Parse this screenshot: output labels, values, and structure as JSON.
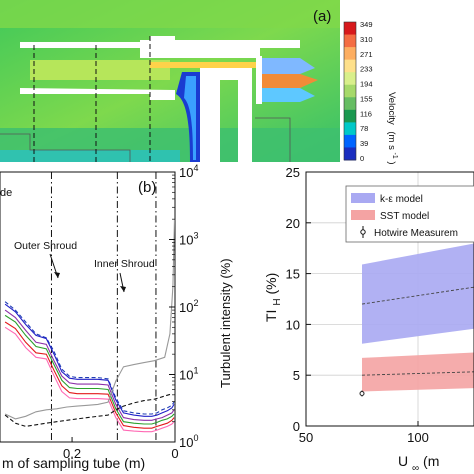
{
  "panel_a": {
    "label": "(a)",
    "colorbar": {
      "ticks": [
        "349",
        "310",
        "271",
        "233",
        "194",
        "155",
        "116",
        "78",
        "39",
        "0"
      ],
      "label_text": "Velocity",
      "label_unit": "(m s",
      "label_exp": "-1",
      "label_close": ")",
      "colors": [
        "#d7191c",
        "#f46d43",
        "#fdae61",
        "#fee08b",
        "#d9ef8b",
        "#a6d96a",
        "#66bd63",
        "#1a9850",
        "#00c8c8",
        "#0064ff",
        "#1a2dbf"
      ]
    }
  },
  "panel_b": {
    "label": "(b)",
    "partial_legend": "de",
    "annotations": [
      "Outer Shroud",
      "Inner Shroud"
    ],
    "xlabel": "m of sampling tube (m)",
    "xticks": [
      "0.2",
      "0"
    ],
    "right_ylabel": "Turbulent intensity (%)",
    "right_yticks": [
      {
        "base": "10",
        "exp": "4"
      },
      {
        "base": "10",
        "exp": "3"
      },
      {
        "base": "10",
        "exp": "2"
      },
      {
        "base": "10",
        "exp": "1"
      },
      {
        "base": "10",
        "exp": "0"
      }
    ]
  },
  "chart_data": [
    {
      "type": "line",
      "panel": "b",
      "xlabel": "m of sampling tube (m)",
      "ylabel": "Turbulent intensity (%)",
      "yscale": "log",
      "ylim": [
        1,
        10000
      ],
      "xlim": [
        0.34,
        0.0
      ],
      "xreverse": true,
      "vlines": [
        0.24,
        0.112,
        0.037
      ],
      "series": [
        {
          "color": "#1f3cb4",
          "dash": "dash",
          "x": [
            0.33,
            0.31,
            0.29,
            0.27,
            0.25,
            0.235,
            0.22,
            0.205,
            0.19,
            0.17,
            0.15,
            0.13,
            0.115,
            0.1,
            0.08,
            0.06,
            0.045,
            0.035,
            0.025,
            0.015,
            0.006,
            0.002
          ],
          "y": [
            120,
            90,
            60,
            40,
            35,
            22,
            12,
            9.4,
            9.0,
            9.0,
            9.0,
            8.6,
            4.5,
            2.9,
            2.7,
            2.6,
            2.6,
            2.7,
            3.0,
            3.2,
            3.5,
            3.9
          ]
        },
        {
          "color": "#2020c8",
          "dash": "solid",
          "x": [
            0.33,
            0.31,
            0.29,
            0.27,
            0.25,
            0.235,
            0.22,
            0.205,
            0.19,
            0.17,
            0.15,
            0.13,
            0.115,
            0.1,
            0.08,
            0.06,
            0.045,
            0.035,
            0.025,
            0.015,
            0.006,
            0.002
          ],
          "y": [
            110,
            85,
            55,
            38,
            34,
            20,
            11,
            8.8,
            8.5,
            8.5,
            8.5,
            8.2,
            4.2,
            2.7,
            2.5,
            2.4,
            2.4,
            2.5,
            2.7,
            2.9,
            3.2,
            3.6
          ]
        },
        {
          "color": "#8c2fa8",
          "dash": "solid",
          "x": [
            0.33,
            0.31,
            0.29,
            0.27,
            0.25,
            0.235,
            0.22,
            0.205,
            0.19,
            0.17,
            0.15,
            0.13,
            0.115,
            0.1,
            0.08,
            0.06,
            0.045,
            0.035,
            0.025,
            0.015,
            0.006,
            0.002
          ],
          "y": [
            90,
            70,
            45,
            30,
            28,
            16,
            9.5,
            7.5,
            7.2,
            7.2,
            7.2,
            7.0,
            3.6,
            2.3,
            2.15,
            2.1,
            2.1,
            2.2,
            2.3,
            2.5,
            2.7,
            3.0
          ]
        },
        {
          "color": "#2ca02c",
          "dash": "solid",
          "x": [
            0.33,
            0.31,
            0.29,
            0.27,
            0.25,
            0.235,
            0.22,
            0.205,
            0.19,
            0.17,
            0.15,
            0.13,
            0.115,
            0.1,
            0.08,
            0.06,
            0.045,
            0.035,
            0.025,
            0.015,
            0.006,
            0.002
          ],
          "y": [
            75,
            60,
            38,
            26,
            24,
            14,
            8.2,
            6.4,
            6.2,
            6.2,
            6.2,
            6.0,
            3.1,
            2.0,
            1.9,
            1.85,
            1.85,
            1.95,
            2.1,
            2.2,
            2.4,
            2.6
          ]
        },
        {
          "color": "#e31a1c",
          "dash": "solid",
          "x": [
            0.33,
            0.31,
            0.29,
            0.27,
            0.25,
            0.235,
            0.22,
            0.205,
            0.19,
            0.17,
            0.15,
            0.13,
            0.115,
            0.1,
            0.08,
            0.06,
            0.045,
            0.035,
            0.025,
            0.015,
            0.006,
            0.002
          ],
          "y": [
            60,
            48,
            30,
            21,
            20,
            11.5,
            6.8,
            5.4,
            5.2,
            5.2,
            5.2,
            5.1,
            2.7,
            1.75,
            1.65,
            1.6,
            1.6,
            1.7,
            1.8,
            1.9,
            2.1,
            2.3
          ]
        },
        {
          "color": "#ff69b4",
          "dash": "solid",
          "x": [
            0.33,
            0.31,
            0.29,
            0.27,
            0.25,
            0.235,
            0.22,
            0.205,
            0.19,
            0.17,
            0.15,
            0.13,
            0.115,
            0.1,
            0.08,
            0.06,
            0.045,
            0.035,
            0.025,
            0.015,
            0.006,
            0.002
          ],
          "y": [
            50,
            40,
            25,
            18,
            17,
            9.6,
            5.6,
            4.5,
            4.4,
            4.4,
            4.4,
            4.3,
            2.3,
            1.5,
            1.45,
            1.42,
            1.42,
            1.5,
            1.6,
            1.7,
            1.85,
            2.0
          ]
        },
        {
          "color": "#111111",
          "dash": "dash",
          "x": [
            0.33,
            0.31,
            0.29,
            0.27,
            0.25,
            0.23,
            0.21,
            0.19,
            0.17,
            0.15,
            0.13,
            0.115,
            0.1,
            0.08,
            0.06,
            0.04,
            0.02,
            0.005
          ],
          "y": [
            2.5,
            1.9,
            1.7,
            1.8,
            1.9,
            2.0,
            2.1,
            2.2,
            2.3,
            2.4,
            2.5,
            3.0,
            3.4,
            3.8,
            4.1,
            4.3,
            4.8,
            5.2
          ]
        },
        {
          "color": "#999999",
          "dash": "solid",
          "x": [
            0.33,
            0.31,
            0.29,
            0.27,
            0.25,
            0.23,
            0.21,
            0.19,
            0.17,
            0.15,
            0.13,
            0.115,
            0.1,
            0.08,
            0.06,
            0.04,
            0.02,
            0.01,
            0.004,
            0.001
          ],
          "y": [
            2.6,
            2.2,
            2.4,
            2.8,
            3.0,
            3.1,
            3.3,
            3.4,
            3.5,
            3.6,
            3.9,
            8.0,
            13,
            14,
            15,
            16,
            18,
            40,
            200,
            2000
          ]
        }
      ]
    },
    {
      "type": "area",
      "panel": "c",
      "xlabel_base": "U",
      "xlabel_sub": "∞",
      "xlabel_unit": " (m",
      "ylabel_base": "TI",
      "ylabel_sub": "H",
      "ylabel_unit": " (%)",
      "xlim": [
        50,
        150
      ],
      "ylim": [
        0,
        25
      ],
      "xticks": [
        50,
        100
      ],
      "yticks": [
        0,
        5,
        10,
        15,
        20,
        25
      ],
      "grid": true,
      "legend_placement": "top-right",
      "series": [
        {
          "name": "k-ε model",
          "color": "#a9a9f2",
          "x": [
            75,
            150
          ],
          "lower": [
            8.1,
            10.3
          ],
          "upper": [
            15.9,
            19.0
          ],
          "mid": [
            12.0,
            14.5
          ]
        },
        {
          "name": "SST model",
          "color": "#f4a3a3",
          "x": [
            75,
            150
          ],
          "lower": [
            3.4,
            3.9
          ],
          "upper": [
            6.7,
            7.5
          ],
          "mid": [
            5.0,
            5.5
          ]
        },
        {
          "name": "Hotwire Measurem",
          "type": "scatter",
          "color": "#222222",
          "x": [
            75
          ],
          "y": [
            3.2
          ]
        }
      ]
    }
  ]
}
